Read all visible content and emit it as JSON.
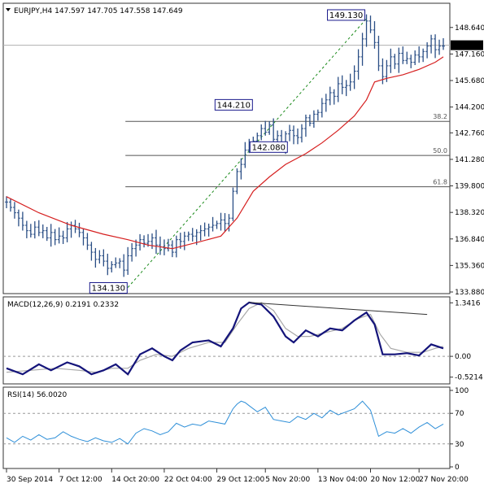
{
  "chart_data": [
    {
      "type": "candlestick",
      "title": "EURJPY,H4  147.597 147.705 147.558 147.649",
      "symbol": "EURJPY",
      "timeframe": "H4",
      "ohlc_header": {
        "open": 147.597,
        "high": 147.705,
        "low": 147.558,
        "close": 147.649
      },
      "current_price": 147.649,
      "current_price_label": "147.649",
      "ylim": [
        133.88,
        149.9
      ],
      "yticks": [
        {
          "v": 148.64,
          "label": "148.640"
        },
        {
          "v": 147.16,
          "label": "147.160"
        },
        {
          "v": 145.68,
          "label": "145.680"
        },
        {
          "v": 144.2,
          "label": "144.200"
        },
        {
          "v": 142.76,
          "label": "142.760"
        },
        {
          "v": 141.28,
          "label": "141.280"
        },
        {
          "v": 139.8,
          "label": "139.800"
        },
        {
          "v": 138.32,
          "label": "138.320"
        },
        {
          "v": 136.84,
          "label": "136.840"
        },
        {
          "v": 135.36,
          "label": "135.360"
        },
        {
          "v": 133.88,
          "label": "133.880"
        }
      ],
      "price_path": [
        [
          0,
          138.9
        ],
        [
          5,
          138.6
        ],
        [
          10,
          138.3
        ],
        [
          15,
          138.0
        ],
        [
          20,
          137.6
        ],
        [
          25,
          137.3
        ],
        [
          30,
          137.1
        ],
        [
          35,
          137.5
        ],
        [
          40,
          137.2
        ],
        [
          45,
          137.3
        ],
        [
          50,
          136.9
        ],
        [
          55,
          137.2
        ],
        [
          60,
          136.8
        ],
        [
          65,
          137.0
        ],
        [
          70,
          136.9
        ],
        [
          75,
          137.4
        ],
        [
          80,
          137.6
        ],
        [
          85,
          137.4
        ],
        [
          90,
          137.2
        ],
        [
          95,
          136.9
        ],
        [
          100,
          136.5
        ],
        [
          105,
          136.1
        ],
        [
          110,
          135.7
        ],
        [
          115,
          135.9
        ],
        [
          120,
          135.6
        ],
        [
          125,
          135.2
        ],
        [
          130,
          135.4
        ],
        [
          135,
          135.5
        ],
        [
          140,
          135.6
        ],
        [
          145,
          135.1
        ],
        [
          150,
          135.9
        ],
        [
          155,
          136.3
        ],
        [
          160,
          136.5
        ],
        [
          165,
          136.8
        ],
        [
          170,
          136.6
        ],
        [
          175,
          136.7
        ],
        [
          180,
          136.9
        ],
        [
          185,
          136.5
        ],
        [
          190,
          136.4
        ],
        [
          195,
          136.3
        ],
        [
          200,
          136.5
        ],
        [
          205,
          136.1
        ],
        [
          210,
          136.8
        ],
        [
          215,
          136.7
        ],
        [
          220,
          137.0
        ],
        [
          225,
          137.1
        ],
        [
          230,
          137.0
        ],
        [
          235,
          137.2
        ],
        [
          240,
          137.3
        ],
        [
          245,
          137.4
        ],
        [
          250,
          137.5
        ],
        [
          255,
          137.6
        ],
        [
          260,
          137.7
        ],
        [
          265,
          137.9
        ],
        [
          270,
          137.7
        ],
        [
          275,
          138.0
        ],
        [
          280,
          139.5
        ],
        [
          285,
          140.6
        ],
        [
          290,
          141.0
        ],
        [
          295,
          141.8
        ],
        [
          300,
          142.1
        ],
        [
          305,
          142.3
        ],
        [
          310,
          142.6
        ],
        [
          315,
          143.0
        ],
        [
          320,
          142.8
        ],
        [
          325,
          143.2
        ],
        [
          330,
          142.4
        ],
        [
          335,
          142.6
        ],
        [
          340,
          142.0
        ],
        [
          345,
          142.7
        ],
        [
          350,
          142.9
        ],
        [
          355,
          142.6
        ],
        [
          360,
          142.5
        ],
        [
          365,
          143.0
        ],
        [
          370,
          143.6
        ],
        [
          375,
          143.3
        ],
        [
          380,
          143.8
        ],
        [
          385,
          143.9
        ],
        [
          390,
          144.4
        ],
        [
          395,
          144.6
        ],
        [
          400,
          145.0
        ],
        [
          405,
          144.8
        ],
        [
          410,
          145.5
        ],
        [
          415,
          145.3
        ],
        [
          420,
          145.4
        ],
        [
          425,
          145.6
        ],
        [
          430,
          146.2
        ],
        [
          435,
          147.0
        ],
        [
          440,
          148.0
        ],
        [
          445,
          149.0
        ],
        [
          450,
          148.5
        ],
        [
          455,
          147.8
        ],
        [
          460,
          146.5
        ],
        [
          465,
          145.9
        ],
        [
          470,
          146.5
        ],
        [
          475,
          147.0
        ],
        [
          480,
          146.6
        ],
        [
          485,
          147.2
        ],
        [
          490,
          146.8
        ],
        [
          495,
          146.9
        ],
        [
          500,
          146.7
        ],
        [
          505,
          147.1
        ],
        [
          510,
          147.0
        ],
        [
          515,
          147.3
        ],
        [
          520,
          147.6
        ],
        [
          525,
          148.0
        ],
        [
          530,
          147.4
        ],
        [
          535,
          147.6
        ],
        [
          540,
          147.6
        ]
      ],
      "moving_average": [
        [
          0,
          139.2
        ],
        [
          40,
          138.3
        ],
        [
          80,
          137.6
        ],
        [
          120,
          137.1
        ],
        [
          150,
          136.8
        ],
        [
          175,
          136.5
        ],
        [
          205,
          136.3
        ],
        [
          240,
          136.7
        ],
        [
          265,
          137.0
        ],
        [
          285,
          138.0
        ],
        [
          305,
          139.5
        ],
        [
          325,
          140.3
        ],
        [
          345,
          141.0
        ],
        [
          370,
          141.6
        ],
        [
          390,
          142.2
        ],
        [
          410,
          142.9
        ],
        [
          430,
          143.7
        ],
        [
          445,
          144.6
        ],
        [
          455,
          145.6
        ],
        [
          470,
          145.8
        ],
        [
          490,
          146.0
        ],
        [
          510,
          146.3
        ],
        [
          530,
          146.7
        ],
        [
          540,
          147.0
        ]
      ],
      "fibonacci": {
        "levels": [
          {
            "label": "38.2",
            "value": 143.4
          },
          {
            "label": "50.0",
            "value": 141.5
          },
          {
            "label": "61.8",
            "value": 139.75
          }
        ],
        "swing_low": {
          "label": "134.130",
          "value": 134.13
        },
        "swing_high": {
          "label": "149.130",
          "value": 149.13
        }
      },
      "annotations": [
        {
          "label": "149.130",
          "value": 149.13
        },
        {
          "label": "144.210",
          "value": 144.21
        },
        {
          "label": "142.080",
          "value": 142.08
        },
        {
          "label": "134.130",
          "value": 134.13
        }
      ],
      "colors": {
        "bars": "#2a4e85",
        "ma": "#d62020",
        "trend": "#1a8a1a",
        "fib": "#555555"
      }
    },
    {
      "type": "line",
      "title": "MACD(12,26,9) 0.2191 0.2332",
      "ylim": [
        -0.65,
        1.45
      ],
      "yticks": [
        {
          "v": 1.3416,
          "label": "1.3416"
        },
        {
          "v": 0.0,
          "label": "0.00"
        },
        {
          "v": -0.5214,
          "label": "-0.5214"
        }
      ],
      "series": [
        {
          "color": "#14147a",
          "points": [
            [
              0,
              -0.3
            ],
            [
              20,
              -0.45
            ],
            [
              40,
              -0.2
            ],
            [
              55,
              -0.35
            ],
            [
              75,
              -0.15
            ],
            [
              90,
              -0.25
            ],
            [
              105,
              -0.45
            ],
            [
              120,
              -0.35
            ],
            [
              135,
              -0.2
            ],
            [
              150,
              -0.45
            ],
            [
              165,
              0.05
            ],
            [
              180,
              0.2
            ],
            [
              195,
              0.0
            ],
            [
              205,
              -0.1
            ],
            [
              215,
              0.15
            ],
            [
              230,
              0.35
            ],
            [
              250,
              0.4
            ],
            [
              265,
              0.25
            ],
            [
              280,
              0.7
            ],
            [
              290,
              1.2
            ],
            [
              300,
              1.35
            ],
            [
              315,
              1.3
            ],
            [
              330,
              1.0
            ],
            [
              345,
              0.5
            ],
            [
              355,
              0.35
            ],
            [
              370,
              0.65
            ],
            [
              385,
              0.5
            ],
            [
              400,
              0.7
            ],
            [
              415,
              0.65
            ],
            [
              430,
              0.9
            ],
            [
              445,
              1.1
            ],
            [
              455,
              0.8
            ],
            [
              465,
              0.05
            ],
            [
              480,
              0.05
            ],
            [
              495,
              0.08
            ],
            [
              510,
              0.02
            ],
            [
              525,
              0.3
            ],
            [
              540,
              0.2
            ]
          ]
        },
        {
          "color": "#a8a8a8",
          "points": [
            [
              0,
              -0.4
            ],
            [
              30,
              -0.35
            ],
            [
              60,
              -0.3
            ],
            [
              90,
              -0.35
            ],
            [
              110,
              -0.4
            ],
            [
              130,
              -0.3
            ],
            [
              150,
              -0.3
            ],
            [
              165,
              -0.1
            ],
            [
              185,
              0.05
            ],
            [
              205,
              0.0
            ],
            [
              225,
              0.2
            ],
            [
              250,
              0.35
            ],
            [
              270,
              0.35
            ],
            [
              285,
              0.8
            ],
            [
              300,
              1.2
            ],
            [
              315,
              1.35
            ],
            [
              330,
              1.15
            ],
            [
              345,
              0.7
            ],
            [
              360,
              0.5
            ],
            [
              375,
              0.5
            ],
            [
              395,
              0.6
            ],
            [
              415,
              0.7
            ],
            [
              435,
              0.95
            ],
            [
              450,
              1.05
            ],
            [
              462,
              0.55
            ],
            [
              475,
              0.2
            ],
            [
              495,
              0.1
            ],
            [
              515,
              0.1
            ],
            [
              530,
              0.2
            ],
            [
              540,
              0.25
            ]
          ]
        }
      ],
      "trendline": [
        [
          300,
          1.35
        ],
        [
          520,
          1.05
        ]
      ]
    },
    {
      "type": "line",
      "title": "RSI(14) 56.0020",
      "ylim": [
        0,
        100
      ],
      "yticks": [
        {
          "v": 100,
          "label": "100"
        },
        {
          "v": 70,
          "label": "70"
        },
        {
          "v": 30,
          "label": "30"
        },
        {
          "v": 0,
          "label": "0"
        }
      ],
      "levels": [
        70,
        30
      ],
      "series": [
        {
          "color": "#2e8fd8",
          "points": [
            [
              0,
              38
            ],
            [
              10,
              32
            ],
            [
              20,
              40
            ],
            [
              30,
              35
            ],
            [
              40,
              42
            ],
            [
              50,
              36
            ],
            [
              60,
              38
            ],
            [
              70,
              46
            ],
            [
              80,
              40
            ],
            [
              90,
              36
            ],
            [
              100,
              33
            ],
            [
              110,
              38
            ],
            [
              120,
              34
            ],
            [
              130,
              32
            ],
            [
              140,
              37
            ],
            [
              150,
              30
            ],
            [
              160,
              44
            ],
            [
              170,
              50
            ],
            [
              180,
              47
            ],
            [
              190,
              42
            ],
            [
              200,
              46
            ],
            [
              210,
              57
            ],
            [
              220,
              52
            ],
            [
              230,
              56
            ],
            [
              240,
              54
            ],
            [
              250,
              60
            ],
            [
              260,
              58
            ],
            [
              270,
              56
            ],
            [
              280,
              76
            ],
            [
              285,
              82
            ],
            [
              290,
              86
            ],
            [
              295,
              84
            ],
            [
              300,
              80
            ],
            [
              310,
              72
            ],
            [
              320,
              78
            ],
            [
              330,
              62
            ],
            [
              340,
              60
            ],
            [
              350,
              58
            ],
            [
              360,
              66
            ],
            [
              370,
              62
            ],
            [
              380,
              70
            ],
            [
              390,
              64
            ],
            [
              400,
              74
            ],
            [
              410,
              68
            ],
            [
              420,
              72
            ],
            [
              430,
              76
            ],
            [
              440,
              86
            ],
            [
              450,
              74
            ],
            [
              460,
              40
            ],
            [
              470,
              46
            ],
            [
              480,
              44
            ],
            [
              490,
              50
            ],
            [
              500,
              44
            ],
            [
              510,
              52
            ],
            [
              520,
              58
            ],
            [
              530,
              50
            ],
            [
              540,
              56
            ]
          ]
        }
      ]
    }
  ],
  "x_axis": {
    "labels": [
      {
        "pos": 0,
        "label": "30 Sep 2014"
      },
      {
        "pos": 65,
        "label": "7 Oct 12:00"
      },
      {
        "pos": 130,
        "label": "14 Oct 20:00"
      },
      {
        "pos": 195,
        "label": "22 Oct 04:00"
      },
      {
        "pos": 260,
        "label": "29 Oct 12:00"
      },
      {
        "pos": 320,
        "label": "5 Nov 20:00"
      },
      {
        "pos": 385,
        "label": "13 Nov 04:00"
      },
      {
        "pos": 450,
        "label": "20 Nov 12:00"
      },
      {
        "pos": 510,
        "label": "27 Nov 20:00"
      }
    ]
  }
}
